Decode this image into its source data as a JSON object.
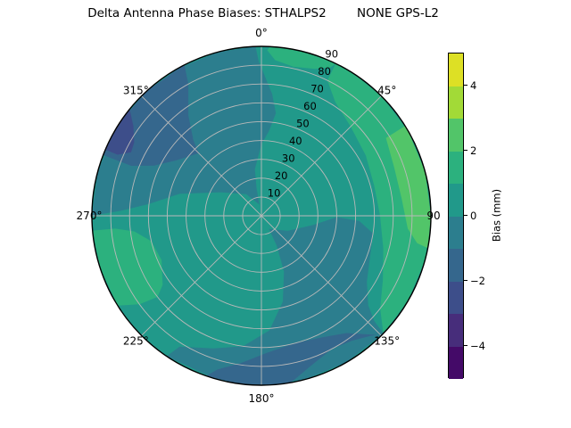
{
  "title": "Delta Antenna Phase Biases: STHALPS2        NONE GPS-L2",
  "chart_data": {
    "type": "heatmap",
    "subtype": "polar_filled_contour_skyplot",
    "title": "Delta Antenna Phase Biases: STHALPS2        NONE GPS-L2",
    "theta_convention": "0 at top, increasing clockwise, degrees",
    "theta_tick_labels": [
      {
        "angle": 0,
        "label": "0°"
      },
      {
        "angle": 45,
        "label": "45°"
      },
      {
        "angle": 90,
        "label": "90"
      },
      {
        "angle": 135,
        "label": "135°"
      },
      {
        "angle": 180,
        "label": "180°"
      },
      {
        "angle": 225,
        "label": "225°"
      },
      {
        "angle": 270,
        "label": "270°"
      },
      {
        "angle": 315,
        "label": "315°"
      }
    ],
    "r_ticks": [
      10,
      20,
      30,
      40,
      50,
      60,
      70,
      80,
      90
    ],
    "r_max": 90,
    "r_label_angle": 22.5,
    "grid": true,
    "grid_color": "#b9b9b9",
    "outline_color": "#000000",
    "colorbar": {
      "label": "Bias (mm)",
      "vmin": -5,
      "vmax": 5,
      "tick_values": [
        4,
        2,
        0,
        -2,
        -4
      ],
      "tick_labels": [
        "4",
        "2",
        "0",
        "−2",
        "−4"
      ],
      "position": "right",
      "bands": [
        {
          "from": -5,
          "to": -4,
          "color": "#440a68"
        },
        {
          "from": -4,
          "to": -3,
          "color": "#472d7b"
        },
        {
          "from": -3,
          "to": -2,
          "color": "#3d4e8a"
        },
        {
          "from": -2,
          "to": -1,
          "color": "#35678d"
        },
        {
          "from": -1,
          "to": 0,
          "color": "#2c7e8e"
        },
        {
          "from": 0,
          "to": 1,
          "color": "#21998a"
        },
        {
          "from": 1,
          "to": 2,
          "color": "#2cb17e"
        },
        {
          "from": 2,
          "to": 3,
          "color": "#52c569"
        },
        {
          "from": 3,
          "to": 4,
          "color": "#a2da37"
        },
        {
          "from": 4,
          "to": 5,
          "color": "#dde025"
        }
      ]
    },
    "base_band": {
      "range": [
        0,
        1
      ],
      "color": "#21998a"
    },
    "contour_regions": [
      {
        "name": "dark-teal-north-west",
        "band": [
          -1,
          0
        ],
        "color": "#2c7e8e",
        "points": [
          [
            -10,
            6
          ],
          [
            -35,
            14
          ],
          [
            -60,
            25
          ],
          [
            -75,
            45
          ],
          [
            -84,
            60
          ],
          [
            -88,
            75
          ],
          [
            -90,
            90
          ],
          [
            -75,
            90
          ],
          [
            -60,
            90
          ],
          [
            -45,
            90
          ],
          [
            -30,
            90
          ],
          [
            -15,
            90
          ],
          [
            -2,
            90
          ],
          [
            -1,
            82
          ],
          [
            5,
            65
          ],
          [
            8,
            55
          ],
          [
            5,
            45
          ],
          [
            0,
            38
          ],
          [
            -8,
            25
          ],
          [
            -10,
            15
          ]
        ]
      },
      {
        "name": "dark-teal-south-east",
        "band": [
          -1,
          0
        ],
        "color": "#2c7e8e",
        "points": [
          [
            150,
            8
          ],
          [
            120,
            16
          ],
          [
            100,
            28
          ],
          [
            91,
            40
          ],
          [
            93,
            52
          ],
          [
            99,
            60
          ],
          [
            112,
            62
          ],
          [
            122,
            66
          ],
          [
            130,
            74
          ],
          [
            133,
            82
          ],
          [
            134,
            90
          ],
          [
            150,
            90
          ],
          [
            165,
            90
          ],
          [
            180,
            90
          ],
          [
            196,
            90
          ],
          [
            214,
            90
          ],
          [
            212,
            82
          ],
          [
            200,
            75
          ],
          [
            188,
            70
          ],
          [
            176,
            61
          ],
          [
            166,
            47
          ],
          [
            158,
            32
          ],
          [
            153,
            18
          ]
        ]
      },
      {
        "name": "green-east-rim-band",
        "band": [
          1,
          2
        ],
        "color": "#2cb17e",
        "points": [
          [
            26,
            80
          ],
          [
            33,
            72
          ],
          [
            45,
            67
          ],
          [
            60,
            64
          ],
          [
            75,
            62
          ],
          [
            90,
            63
          ],
          [
            105,
            67
          ],
          [
            118,
            73
          ],
          [
            128,
            80
          ],
          [
            134,
            90
          ],
          [
            120,
            90
          ],
          [
            105,
            90
          ],
          [
            90,
            90
          ],
          [
            75,
            90
          ],
          [
            60,
            90
          ],
          [
            45,
            90
          ],
          [
            33,
            90
          ],
          [
            26,
            90
          ]
        ]
      },
      {
        "name": "green-north-rim-sliver",
        "band": [
          1,
          2
        ],
        "color": "#2cb17e",
        "points": [
          [
            2,
            88
          ],
          [
            5,
            83
          ],
          [
            12,
            81
          ],
          [
            20,
            83
          ],
          [
            25,
            87
          ],
          [
            26,
            90
          ],
          [
            18,
            90
          ],
          [
            10,
            90
          ],
          [
            3,
            90
          ]
        ]
      },
      {
        "name": "bright-green-east-strip",
        "band": [
          2,
          3
        ],
        "color": "#52c569",
        "points": [
          [
            58,
            78
          ],
          [
            70,
            75
          ],
          [
            83,
            75
          ],
          [
            95,
            78
          ],
          [
            100,
            84
          ],
          [
            101,
            90
          ],
          [
            90,
            90
          ],
          [
            75,
            90
          ],
          [
            60,
            90
          ],
          [
            58,
            90
          ]
        ]
      },
      {
        "name": "green-south-west-patch",
        "band": [
          1,
          2
        ],
        "color": "#2cb17e",
        "points": [
          [
            235,
            64
          ],
          [
            246,
            58
          ],
          [
            257,
            60
          ],
          [
            263,
            68
          ],
          [
            265,
            78
          ],
          [
            265,
            90
          ],
          [
            252,
            90
          ],
          [
            238,
            90
          ],
          [
            234,
            80
          ],
          [
            232,
            70
          ]
        ]
      },
      {
        "name": "steel-blue-north-west-patch",
        "band": [
          -2,
          -1
        ],
        "color": "#35678d",
        "points": [
          [
            315,
            47
          ],
          [
            303,
            54
          ],
          [
            295,
            63
          ],
          [
            291,
            74
          ],
          [
            291,
            90
          ],
          [
            305,
            90
          ],
          [
            318,
            90
          ],
          [
            333,
            90
          ],
          [
            331,
            80
          ],
          [
            324,
            66
          ],
          [
            318,
            54
          ]
        ]
      },
      {
        "name": "indigo-north-west-sliver",
        "band": [
          -3,
          -2
        ],
        "color": "#3d4e8a",
        "points": [
          [
            296,
            77
          ],
          [
            293,
            83
          ],
          [
            293,
            90
          ],
          [
            302,
            90
          ],
          [
            309,
            90
          ],
          [
            305,
            83
          ],
          [
            300,
            78
          ]
        ]
      },
      {
        "name": "steel-blue-south-arc",
        "band": [
          -2,
          -1
        ],
        "color": "#35678d",
        "points": [
          [
            136,
            88
          ],
          [
            144,
            77
          ],
          [
            154,
            72
          ],
          [
            166,
            70
          ],
          [
            178,
            73
          ],
          [
            188,
            79
          ],
          [
            196,
            85
          ],
          [
            199,
            90
          ],
          [
            188,
            90
          ],
          [
            178,
            90
          ],
          [
            170,
            90
          ],
          [
            162,
            84
          ],
          [
            152,
            80
          ],
          [
            144,
            82
          ],
          [
            138,
            86
          ]
        ]
      }
    ]
  }
}
